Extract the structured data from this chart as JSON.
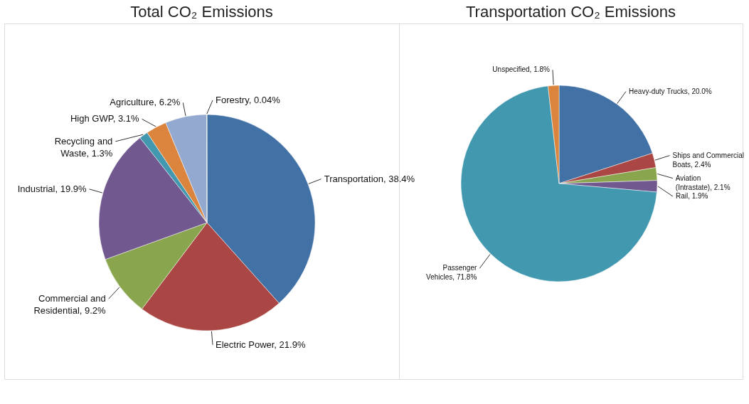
{
  "chart_data": [
    {
      "type": "pie",
      "title": "Total CO₂ Emissions",
      "categories": [
        "Transportation",
        "Electric Power",
        "Commercial and Residential",
        "Industrial",
        "Recycling and Waste",
        "High GWP",
        "Agriculture",
        "Forestry"
      ],
      "values": [
        38.4,
        21.9,
        9.2,
        19.9,
        1.3,
        3.1,
        6.2,
        0.04
      ],
      "value_labels": [
        "38.4%",
        "21.9%",
        "9.2%",
        "19.9%",
        "1.3%",
        "3.1%",
        "6.2%",
        "0.04%"
      ],
      "colors": [
        "#4271a6",
        "#aa4643",
        "#89a54e",
        "#71588f",
        "#4198af",
        "#db843d",
        "#93a9cf",
        "#b9cd96"
      ]
    },
    {
      "type": "pie",
      "title": "Transportation CO₂ Emissions",
      "categories": [
        "Heavy-duty Trucks",
        "Ships and Commercial Boats",
        "Aviation (Intrastate)",
        "Rail",
        "Passenger Vehicles",
        "Unspecified"
      ],
      "values": [
        20.0,
        2.4,
        2.1,
        1.9,
        71.8,
        1.8
      ],
      "value_labels": [
        "20.0%",
        "2.4%",
        "2.1%",
        "1.9%",
        "71.8%",
        "1.8%"
      ],
      "colors": [
        "#4271a6",
        "#aa4643",
        "#89a54e",
        "#71588f",
        "#4198af",
        "#db843d"
      ]
    }
  ]
}
